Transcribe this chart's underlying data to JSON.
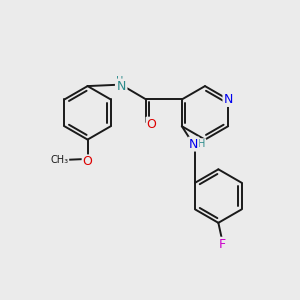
{
  "bg_color": "#ebebeb",
  "bond_color": "#1a1a1a",
  "bond_width": 1.4,
  "atom_colors": {
    "N": "#0000ee",
    "O": "#dd0000",
    "F": "#cc00cc",
    "C": "#1a1a1a",
    "NH": "#2a8a8a",
    "H": "#2a8a8a"
  },
  "font_size": 8,
  "fig_size": [
    3.0,
    3.0
  ],
  "dpi": 100
}
